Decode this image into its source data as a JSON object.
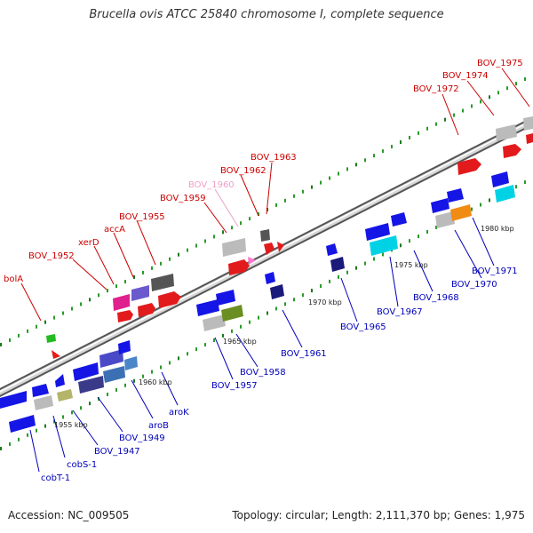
{
  "title": "Brucella ovis ATCC 25840 chromosome I, complete sequence",
  "footer": {
    "accession": "Accession: NC_009505",
    "summary": "Topology: circular; Length: 2,111,370 bp; Genes: 1,975"
  },
  "colors": {
    "forward_gene": "#e31a1c",
    "reverse_gene": "#1515e6",
    "label_forward": "#cc0000",
    "label_reverse": "#0000bb",
    "highlight_label": "#f0a0c8",
    "backbone": "#888888"
  },
  "kbp_markers": [
    "1955 kbp",
    "1960 kbp",
    "1965 kbp",
    "1970 kbp",
    "1975 kbp",
    "1980 kbp"
  ],
  "genes_top": [
    {
      "label": "bolA",
      "color": "#cc0000"
    },
    {
      "label": "BOV_1952",
      "color": "#cc0000"
    },
    {
      "label": "xerD",
      "color": "#cc0000"
    },
    {
      "label": "accA",
      "color": "#cc0000"
    },
    {
      "label": "BOV_1955",
      "color": "#cc0000"
    },
    {
      "label": "BOV_1959",
      "color": "#cc0000"
    },
    {
      "label": "BOV_1960",
      "color": "#f0a0c8"
    },
    {
      "label": "BOV_1962",
      "color": "#cc0000"
    },
    {
      "label": "BOV_1963",
      "color": "#cc0000"
    },
    {
      "label": "BOV_1972",
      "color": "#cc0000"
    },
    {
      "label": "BOV_1974",
      "color": "#cc0000"
    },
    {
      "label": "BOV_1975",
      "color": "#cc0000"
    }
  ],
  "genes_bottom": [
    {
      "label": "cobT-1"
    },
    {
      "label": "cobS-1"
    },
    {
      "label": "BOV_1947"
    },
    {
      "label": "BOV_1949"
    },
    {
      "label": "aroB"
    },
    {
      "label": "aroK"
    },
    {
      "label": "BOV_1957"
    },
    {
      "label": "BOV_1958"
    },
    {
      "label": "BOV_1961"
    },
    {
      "label": "BOV_1965"
    },
    {
      "label": "BOV_1967"
    },
    {
      "label": "BOV_1968"
    },
    {
      "label": "BOV_1970"
    },
    {
      "label": "BOV_1971"
    }
  ]
}
